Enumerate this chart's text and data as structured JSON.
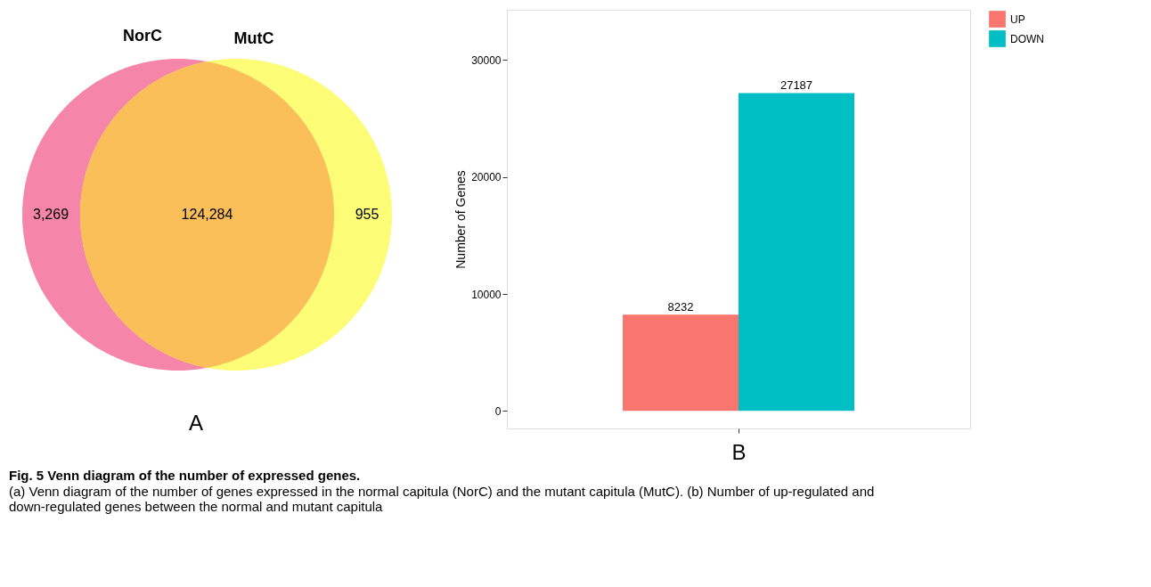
{
  "chart_data": [
    {
      "type": "other",
      "categories": [
        null,
        null,
        null
      ],
      "value_labels": [
        "3,269",
        "124,284",
        "955"
      ],
      "colors": [
        "#f585a9",
        "#fbbf5a",
        "#fcfc77"
      ],
      "xlabel": "A",
      "annotations": [
        "NorC",
        "MutC"
      ]
    },
    {
      "type": "bar",
      "categories": [
        null
      ],
      "series": [
        {
          "name": "UP",
          "color": "#f8766d",
          "values": [
            8232
          ]
        },
        {
          "name": "DOWN",
          "color": "#00bfc4",
          "values": [
            27187
          ]
        }
      ],
      "ylabel": "Number of Genes",
      "xlabel": "B",
      "ylim": [
        -1500,
        34300
      ],
      "yticks": [
        0,
        10000,
        20000,
        30000
      ],
      "data_labels": true,
      "legend": "right",
      "grid": false,
      "annotations": [
        "Fig. 5 Venn diagram of the number of expressed genes.",
        "(a) Venn diagram of the number of genes expressed in the normal capitula (NorC) and the mutant capitula (MutC). (b) Number of up-regulated and down-regulated genes between the normal and mutant capitula"
      ]
    }
  ]
}
